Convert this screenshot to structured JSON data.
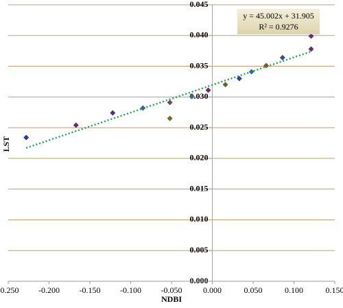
{
  "chart_data": {
    "type": "scatter",
    "x_label": "NDBI",
    "y_label": "LST",
    "x": [
      -0.228,
      -0.167,
      -0.122,
      -0.085,
      -0.052,
      -0.052,
      -0.025,
      -0.005,
      0.016,
      0.033,
      0.048,
      0.066,
      0.086,
      0.121,
      0.121
    ],
    "values": [
      0.0234,
      0.0254,
      0.0274,
      0.0282,
      0.0291,
      0.0265,
      0.0301,
      0.0311,
      0.032,
      0.033,
      0.0341,
      0.0351,
      0.0364,
      0.0399,
      0.0378
    ],
    "colors": [
      "#2b3d8f",
      "#6a2d6e",
      "#4a2f86",
      "#2f7184",
      "#6b4a5a",
      "#6e6e28",
      "#2f7184",
      "#6a2d6e",
      "#5d6a2a",
      "#3a3f8f",
      "#2f7184",
      "#7a5a2a",
      "#3a4a9a",
      "#6a2d6e",
      "#6a2d6e"
    ],
    "trendline": {
      "x": [
        -0.228,
        0.121
      ],
      "values": [
        0.0217,
        0.0374
      ],
      "color": "#1fa84a",
      "equation": "y = 45.002x + 31.905",
      "r2": "R² = 0.9276"
    },
    "grid_color": "#c99a6e",
    "xlim": [
      -0.25,
      0.15
    ],
    "xticks": [
      {
        "value": -0.25,
        "label": "-0.250"
      },
      {
        "value": -0.2,
        "label": "-0.200"
      },
      {
        "value": -0.15,
        "label": "-0.150"
      },
      {
        "value": -0.1,
        "label": "-0.100"
      },
      {
        "value": -0.05,
        "label": "-0.050"
      },
      {
        "value": 0,
        "label": "0.000"
      },
      {
        "value": 0.05,
        "label": "0.050"
      },
      {
        "value": 0.1,
        "label": "0.100"
      },
      {
        "value": 0.15,
        "label": "0.150"
      }
    ],
    "ylim": [
      0,
      0.045
    ],
    "yticks": [
      {
        "value": 0,
        "label": "0.000"
      },
      {
        "value": 0.005,
        "label": "0.005"
      },
      {
        "value": 0.01,
        "label": "0.010"
      },
      {
        "value": 0.015,
        "label": "0.015"
      },
      {
        "value": 0.02,
        "label": "0.020"
      },
      {
        "value": 0.025,
        "label": "0.025"
      },
      {
        "value": 0.03,
        "label": "0.030"
      },
      {
        "value": 0.035,
        "label": "0.035"
      },
      {
        "value": 0.04,
        "label": "0.040"
      },
      {
        "value": 0.045,
        "label": "0.045"
      }
    ]
  }
}
